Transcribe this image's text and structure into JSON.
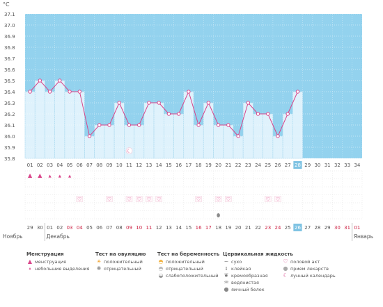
{
  "chart_data": {
    "type": "line",
    "unit": "°C",
    "ylim": [
      35.8,
      37.1
    ],
    "y_ticks": [
      "37.1",
      "37.0",
      "36.9",
      "36.8",
      "36.7",
      "36.6",
      "36.5",
      "36.4",
      "36.3",
      "36.2",
      "36.1",
      "36.0",
      "35.9",
      "35.8"
    ],
    "cycle_days": [
      "01",
      "02",
      "03",
      "04",
      "05",
      "06",
      "07",
      "08",
      "09",
      "10",
      "11",
      "12",
      "13",
      "14",
      "15",
      "16",
      "17",
      "18",
      "19",
      "20",
      "21",
      "22",
      "23",
      "24",
      "25",
      "26",
      "27",
      "28",
      "29",
      "30",
      "31",
      "32",
      "33",
      "34"
    ],
    "temperatures": [
      36.4,
      36.5,
      36.4,
      36.5,
      36.4,
      36.4,
      36.0,
      36.1,
      36.1,
      36.3,
      36.1,
      36.1,
      36.3,
      36.3,
      36.2,
      36.2,
      36.4,
      36.1,
      36.3,
      36.1,
      36.1,
      36.0,
      36.3,
      36.2,
      36.2,
      36.0,
      36.2,
      36.4
    ],
    "current_day": "28",
    "moon_day": "11",
    "menstruation_days": [
      "01",
      "02"
    ],
    "spotting_days": [
      "03",
      "04",
      "05"
    ],
    "intercourse_days": [
      "06",
      "09",
      "11",
      "12",
      "13",
      "14",
      "18",
      "20",
      "21",
      "25",
      "26"
    ],
    "egg_white_days": [
      "20"
    ],
    "calendar_dates": [
      "29",
      "30",
      "01",
      "02",
      "03",
      "04",
      "05",
      "06",
      "07",
      "08",
      "09",
      "10",
      "11",
      "12",
      "13",
      "14",
      "15",
      "16",
      "17",
      "18",
      "19",
      "20",
      "21",
      "22",
      "23",
      "24",
      "25",
      "26",
      "27",
      "28",
      "29",
      "30",
      "31",
      "01"
    ],
    "calendar_red_dates_idx": [
      4,
      5,
      10,
      11,
      12,
      17,
      18,
      24,
      25,
      31,
      32,
      33
    ],
    "months": [
      {
        "label": "Ноябрь",
        "col": 0
      },
      {
        "label": "Декабрь",
        "col": 2
      },
      {
        "label": "Январь",
        "col": 33
      }
    ]
  },
  "legend": {
    "menstruation": {
      "title": "Менструация",
      "items": [
        "менструация",
        "небольшие выделения"
      ]
    },
    "ovulation_test": {
      "title": "Тест на овуляцию",
      "items": [
        "положительный",
        "отрицательный"
      ]
    },
    "pregnancy_test": {
      "title": "Тест на беременность",
      "items": [
        "положительный",
        "отрицательный",
        "слабоположительный"
      ]
    },
    "cervical_fluid": {
      "title": "Цервикальная жидкость",
      "items": [
        "сухо",
        "клейкая",
        "кремообразная",
        "водянистая",
        "яичный белок"
      ]
    },
    "other": {
      "items": [
        "половой акт",
        "прием лекарств",
        "лунный календарь"
      ]
    }
  },
  "colors": {
    "bg_region": "#93d2ee",
    "bar_fill": "#dff2fc",
    "bar_stroke": "#a6d8ef",
    "line": "#d9458a",
    "marker": "#d9458a",
    "red_text": "#cc2244",
    "current_day_bg": "#7fc3e3"
  }
}
